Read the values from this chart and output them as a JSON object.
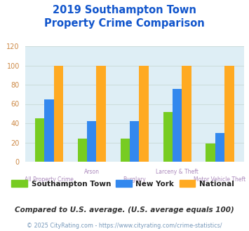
{
  "title": "2019 Southampton Town\nProperty Crime Comparison",
  "categories": [
    "All Property Crime",
    "Arson",
    "Burglary",
    "Larceny & Theft",
    "Motor Vehicle Theft"
  ],
  "southampton": [
    45,
    24,
    24,
    52,
    19
  ],
  "newyork": [
    65,
    42,
    42,
    76,
    30
  ],
  "national": [
    100,
    100,
    100,
    100,
    100
  ],
  "colors": {
    "southampton": "#77cc22",
    "newyork": "#3388ee",
    "national": "#ffaa22"
  },
  "ylim": [
    0,
    120
  ],
  "yticks": [
    0,
    20,
    40,
    60,
    80,
    100,
    120
  ],
  "plot_background": "#deeef5",
  "title_color": "#1155cc",
  "xlabel_color": "#aa88bb",
  "legend_labels": [
    "Southampton Town",
    "New York",
    "National"
  ],
  "footnote1": "Compared to U.S. average. (U.S. average equals 100)",
  "footnote2": "© 2025 CityRating.com - https://www.cityrating.com/crime-statistics/",
  "footnote1_color": "#333333",
  "footnote2_color": "#7799bb",
  "bar_width": 0.22,
  "grid_color": "#ccdddd",
  "ytick_color": "#cc8844"
}
